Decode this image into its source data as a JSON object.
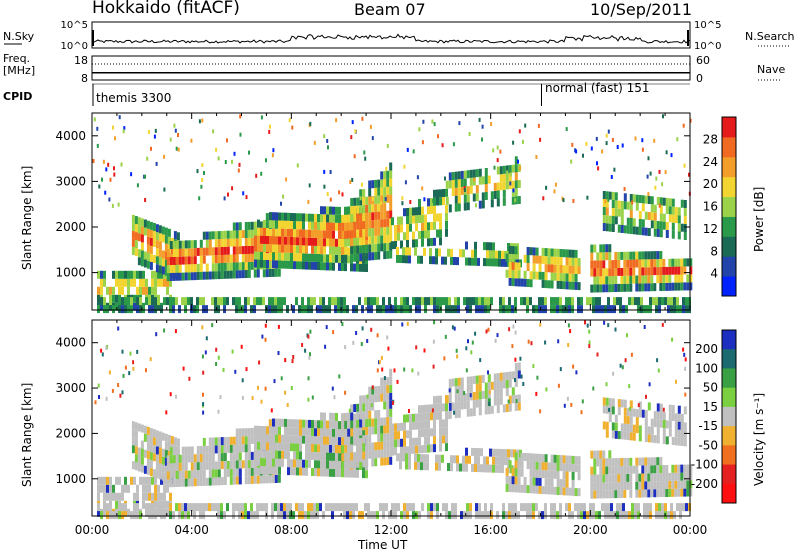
{
  "header": {
    "station": "Hokkaido (fitACF)",
    "beam": "Beam 07",
    "date": "10/Sep/2011"
  },
  "side_labels": {
    "nsky": "N.Sky",
    "freq": "Freq.",
    "mhz": "[MHz]",
    "cpid": "CPID",
    "nsearch": "N.Search",
    "nave": "Nave"
  },
  "chart_data": [
    {
      "type": "line",
      "name": "noise-panel",
      "y_ticks_left": [
        "10^5",
        "10^0"
      ],
      "y_ticks_right": [
        "10^5",
        "10^0"
      ]
    },
    {
      "type": "line",
      "name": "frequency-panel",
      "y_ticks_left": [
        "18",
        "8"
      ],
      "y_ticks_right": [
        "60",
        "0"
      ],
      "values_note_free": true,
      "freq_value": 11,
      "nave_value": 40
    },
    {
      "type": "table",
      "name": "cpid-panel",
      "segments": [
        {
          "label": "themis 3300",
          "start": 0,
          "end": 18
        },
        {
          "label": "normal (fast) 151",
          "start": 18,
          "end": 24
        }
      ]
    },
    {
      "type": "heatmap",
      "name": "power",
      "ylabel": "Slant Range [km]",
      "ylim": [
        180,
        4500
      ],
      "y_ticks": [
        1000,
        2000,
        3000,
        4000
      ],
      "xlim": [
        0,
        24
      ],
      "colorbar": {
        "title": "Power [dB]",
        "range": [
          0,
          32
        ],
        "ticks": [
          4,
          8,
          12,
          16,
          20,
          24,
          28
        ],
        "colors": [
          "#0022ff",
          "#2244aa",
          "#1a6a55",
          "#2a9a4a",
          "#9ad34a",
          "#f3d531",
          "#f39d2a",
          "#f06a22",
          "#e51a1a"
        ]
      }
    },
    {
      "type": "heatmap",
      "name": "velocity",
      "ylabel": "Slant Range [km]",
      "ylim": [
        180,
        4500
      ],
      "y_ticks": [
        1000,
        2000,
        3000,
        4000
      ],
      "xlim": [
        0,
        24
      ],
      "colorbar": {
        "title": "Velocity [m s⁻¹]",
        "ticks": [
          "200",
          "100",
          "50",
          "15",
          "-15",
          "-50",
          "-100",
          "-200"
        ],
        "colors": [
          "#1c2fc0",
          "#1a6a70",
          "#3aa044",
          "#7ad040",
          "#c0c0c0",
          "#f0b030",
          "#f07020",
          "#e52020",
          "#ff1010"
        ]
      }
    }
  ],
  "x_axis": {
    "label": "Time UT",
    "ticks": [
      "00:00",
      "04:00",
      "08:00",
      "12:00",
      "16:00",
      "20:00",
      "00:00"
    ]
  }
}
